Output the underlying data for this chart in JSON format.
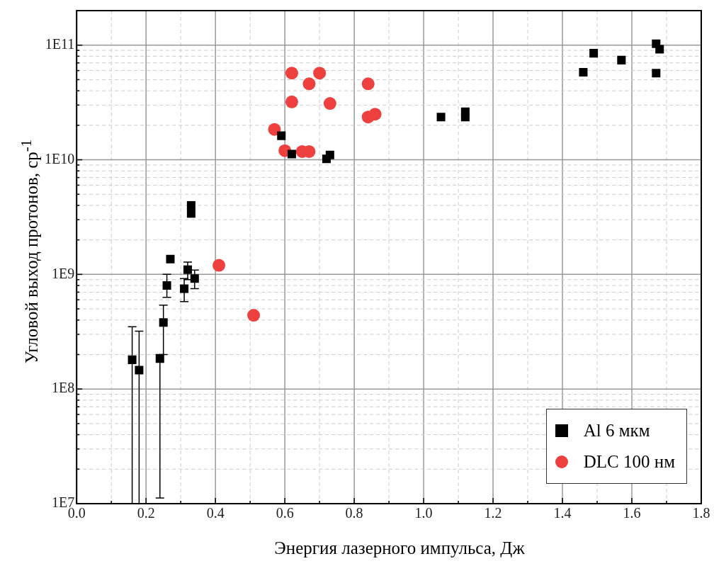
{
  "chart_data": {
    "type": "scatter",
    "xlabel": "Энергия лазерного импульса, Дж",
    "ylabel": "Угловой выход протонов, ср$^{-1}$",
    "log": "y",
    "grid": true,
    "legend": "bottom right",
    "xlim": [
      0,
      1.8
    ],
    "ylim": [
      10000000.0,
      200000000000.0
    ],
    "xticks": [
      {
        "value": 0,
        "label": "0.0"
      },
      {
        "value": 0.1,
        "label": null
      },
      {
        "value": 0.2,
        "label": "0.2"
      },
      {
        "value": 0.3,
        "label": null
      },
      {
        "value": 0.4,
        "label": "0.4"
      },
      {
        "value": 0.5,
        "label": null
      },
      {
        "value": 0.6,
        "label": "0.6"
      },
      {
        "value": 0.7,
        "label": null
      },
      {
        "value": 0.8,
        "label": "0.8"
      },
      {
        "value": 0.9,
        "label": null
      },
      {
        "value": 1.0,
        "label": "1.0"
      },
      {
        "value": 1.1,
        "label": null
      },
      {
        "value": 1.2,
        "label": "1.2"
      },
      {
        "value": 1.3,
        "label": null
      },
      {
        "value": 1.4,
        "label": "1.4"
      },
      {
        "value": 1.5,
        "label": null
      },
      {
        "value": 1.6,
        "label": "1.6"
      },
      {
        "value": 1.7,
        "label": null
      },
      {
        "value": 1.8,
        "label": "1.8"
      }
    ],
    "yticks": [
      {
        "value": 10000000.0,
        "label": "1E7"
      },
      {
        "value": 20000000.0,
        "label": null
      },
      {
        "value": 30000000.0,
        "label": null
      },
      {
        "value": 40000000.0,
        "label": null
      },
      {
        "value": 50000000.0,
        "label": null
      },
      {
        "value": 60000000.0,
        "label": null
      },
      {
        "value": 70000000.0,
        "label": null
      },
      {
        "value": 80000000.0,
        "label": null
      },
      {
        "value": 90000000.0,
        "label": null
      },
      {
        "value": 100000000.0,
        "label": "1E8"
      },
      {
        "value": 200000000.0,
        "label": null
      },
      {
        "value": 300000000.0,
        "label": null
      },
      {
        "value": 400000000.0,
        "label": null
      },
      {
        "value": 500000000.0,
        "label": null
      },
      {
        "value": 600000000.0,
        "label": null
      },
      {
        "value": 700000000.0,
        "label": null
      },
      {
        "value": 800000000.0,
        "label": null
      },
      {
        "value": 900000000.0,
        "label": null
      },
      {
        "value": 1000000000.0,
        "label": "1E9"
      },
      {
        "value": 2000000000.0,
        "label": null
      },
      {
        "value": 3000000000.0,
        "label": null
      },
      {
        "value": 4000000000.0,
        "label": null
      },
      {
        "value": 5000000000.0,
        "label": null
      },
      {
        "value": 6000000000.0,
        "label": null
      },
      {
        "value": 7000000000.0,
        "label": null
      },
      {
        "value": 8000000000.0,
        "label": null
      },
      {
        "value": 9000000000.0,
        "label": null
      },
      {
        "value": 10000000000.0,
        "label": "1E10"
      },
      {
        "value": 20000000000.0,
        "label": null
      },
      {
        "value": 30000000000.0,
        "label": null
      },
      {
        "value": 40000000000.0,
        "label": null
      },
      {
        "value": 50000000000.0,
        "label": null
      },
      {
        "value": 60000000000.0,
        "label": null
      },
      {
        "value": 70000000000.0,
        "label": null
      },
      {
        "value": 80000000000.0,
        "label": null
      },
      {
        "value": 90000000000.0,
        "label": null
      },
      {
        "value": 100000000000.0,
        "label": "1E11"
      },
      {
        "value": 200000000000.0,
        "label": null
      }
    ],
    "series": [
      {
        "name": "Al 6 мкм",
        "color": "#000000",
        "marker": "square",
        "x": [
          0.16,
          0.18,
          0.24,
          0.25,
          0.26,
          0.27,
          0.31,
          0.32,
          0.34,
          0.33,
          0.33,
          0.59,
          0.62,
          0.72,
          0.73,
          1.05,
          1.12,
          1.12,
          1.46,
          1.49,
          1.57,
          1.67,
          1.67,
          1.68
        ],
        "values": [
          180000000.0,
          146000000.0,
          184000000.0,
          380000000.0,
          800000000.0,
          1360000000.0,
          750000000.0,
          1100000000.0,
          920000000.0,
          4000000000.0,
          3400000000.0,
          16200000000.0,
          11200000000.0,
          10200000000.0,
          11000000000.0,
          23600000000.0,
          23600000000.0,
          26200000000.0,
          58000000000.0,
          85000000000.0,
          74000000000.0,
          103000000000.0,
          57000000000.0,
          92000000000.0
        ],
        "errors": [
          [
            10000000.0,
            350000000.0
          ],
          [
            10000000.0,
            320000000.0
          ],
          [
            11200000.0,
            200000000.0
          ],
          [
            200000000.0,
            540000000.0
          ],
          [
            630000000.0,
            1000000000.0
          ],
          null,
          [
            580000000.0,
            920000000.0
          ],
          [
            900000000.0,
            1280000000.0
          ],
          [
            750000000.0,
            1090000000.0
          ],
          null,
          null,
          null,
          null,
          null,
          null,
          null,
          null,
          null,
          null,
          null,
          null,
          null,
          null,
          null
        ]
      },
      {
        "name": "DLC 100 нм",
        "color": "#ef4040",
        "marker": "circle",
        "x": [
          0.41,
          0.51,
          0.57,
          0.6,
          0.62,
          0.62,
          0.65,
          0.67,
          0.67,
          0.7,
          0.73,
          0.84,
          0.84,
          0.86
        ],
        "values": [
          1200000000.0,
          440000000.0,
          18400000000.0,
          12000000000.0,
          57000000000.0,
          32000000000.0,
          11800000000.0,
          11800000000.0,
          46000000000.0,
          57000000000.0,
          31000000000.0,
          46000000000.0,
          23600000000.0,
          25000000000.0
        ]
      }
    ]
  }
}
